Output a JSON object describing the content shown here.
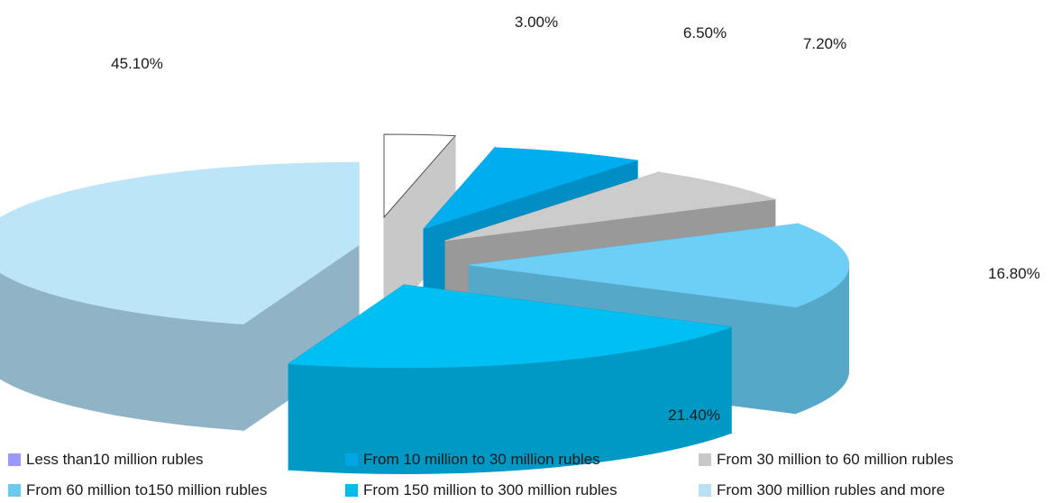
{
  "chart_data": {
    "type": "pie",
    "title": "",
    "legend_position": "bottom",
    "slices": [
      {
        "name": "Less than10 million rubles",
        "value": 3.0,
        "label": "3.00%",
        "color": "#9999ff",
        "top_color": "#ffffff",
        "side_color": "#c8c8c8"
      },
      {
        "name": "From 10 million to 30 million rubles",
        "value": 6.5,
        "label": "6.50%",
        "color": "#00a6e6",
        "top_color": "#00adef",
        "side_color": "#008ec4"
      },
      {
        "name": "From 30 million to 60 million rubles",
        "value": 7.2,
        "label": "7.20%",
        "color": "#c8c8c8",
        "top_color": "#cccccc",
        "side_color": "#999999"
      },
      {
        "name": "From 60 million to150 million rubles",
        "value": 16.8,
        "label": "16.80%",
        "color": "#66ccee",
        "top_color": "#6dcff6",
        "side_color": "#55a8c8"
      },
      {
        "name": "From 150 million to 300 million rubles",
        "value": 21.4,
        "label": "21.40%",
        "color": "#00bbee",
        "top_color": "#00bff3",
        "side_color": "#0099c6"
      },
      {
        "name": "From 300 million rubles and more",
        "value": 45.1,
        "label": "45.10%",
        "color": "#b8e2f2",
        "top_color": "#bde5f8",
        "side_color": "#90b4c6"
      }
    ]
  }
}
